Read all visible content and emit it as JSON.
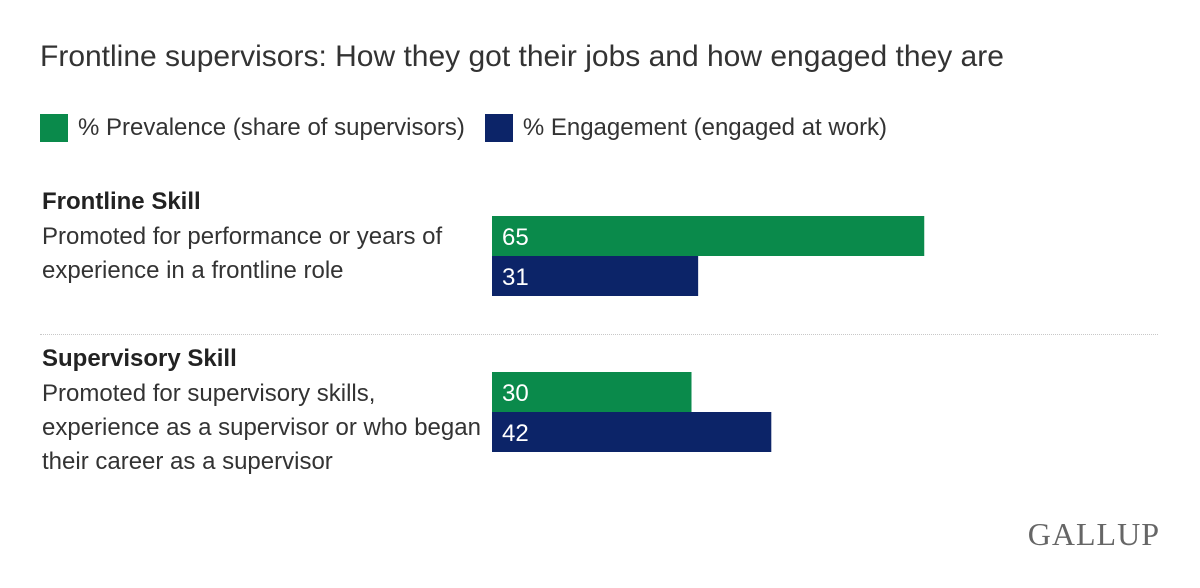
{
  "title": "Frontline supervisors: How they got their jobs and how engaged they are",
  "legend": [
    {
      "label": "% Prevalence (share of supervisors)",
      "color": "#0a8a4b"
    },
    {
      "label": "% Engagement (engaged at work)",
      "color": "#0c2468"
    }
  ],
  "groups": [
    {
      "heading": "Frontline Skill",
      "description": "Promoted for performance or years of experience in a frontline role"
    },
    {
      "heading": "Supervisory Skill",
      "description": "Promoted for supervisory skills, experience as a supervisor or who began their career as a supervisor"
    }
  ],
  "chart_data": {
    "type": "bar",
    "orientation": "horizontal",
    "categories": [
      "Frontline Skill",
      "Supervisory Skill"
    ],
    "series": [
      {
        "name": "% Prevalence (share of supervisors)",
        "color": "#0a8a4b",
        "values": [
          65,
          30
        ]
      },
      {
        "name": "% Engagement (engaged at work)",
        "color": "#0c2468",
        "values": [
          31,
          42
        ]
      }
    ],
    "xlim": [
      0,
      100
    ],
    "grid": false,
    "legend_position": "top-left"
  },
  "brand": "GALLUP"
}
